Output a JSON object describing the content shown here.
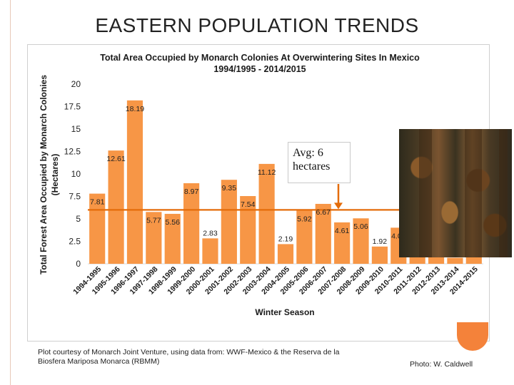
{
  "slide": {
    "title": "EASTERN POPULATION TRENDS",
    "caption": "Plot courtesy of Monarch Joint Venture, using data from: WWF-Mexico & the Reserva de la Biosfera Mariposa Monarca (RBMM)",
    "photo_credit": "Photo: W. Caldwell",
    "avg_note": "Avg: 6 hectares"
  },
  "colors": {
    "bar": "#f79646",
    "avg_line": "#e46c0a",
    "accent": "#f4823a"
  },
  "chart_data": {
    "type": "bar",
    "title_line1": "Total Area Occupied by Monarch Colonies At Overwintering Sites In Mexico",
    "title_line2": "1994/1995 - 2014/2015",
    "xlabel": "Winter Season",
    "ylabel_line1": "Total Forest Area Occupied by Monarch Colonies",
    "ylabel_line2": "(Hectares)",
    "ylim": [
      0,
      20
    ],
    "yticks": [
      "0",
      "2.5",
      "5",
      "7.5",
      "10",
      "12.5",
      "15",
      "17.5",
      "20"
    ],
    "average": 6,
    "categories": [
      "1994-1995",
      "1995-1996",
      "1996-1997",
      "1997-1998",
      "1998-1999",
      "1999-2000",
      "2000-2001",
      "2001-2002",
      "2002-2003",
      "2003-2004",
      "2004-2005",
      "2005-2006",
      "2006-2007",
      "2007-2008",
      "2008-2009",
      "2009-2010",
      "2010-2011",
      "2011-2012",
      "2012-2013",
      "2013-2014",
      "2014-2015"
    ],
    "values": [
      7.81,
      12.61,
      18.19,
      5.77,
      5.56,
      8.97,
      2.83,
      9.35,
      7.54,
      11.12,
      2.19,
      5.92,
      6.67,
      4.61,
      5.06,
      1.92,
      4.02,
      2.89,
      1.19,
      0.67,
      1.13
    ],
    "labels": [
      "7.81",
      "12.61",
      "18.19",
      "5.77",
      "5.56",
      "8.97",
      "2.83",
      "9.35",
      "7.54",
      "11.12",
      "2.19",
      "5.92",
      "6.67",
      "4.61",
      "5.06",
      "1.92",
      "4.02",
      "2.89",
      "1.19",
      "0.67",
      "1.13"
    ],
    "grid": false,
    "legend": "none"
  }
}
